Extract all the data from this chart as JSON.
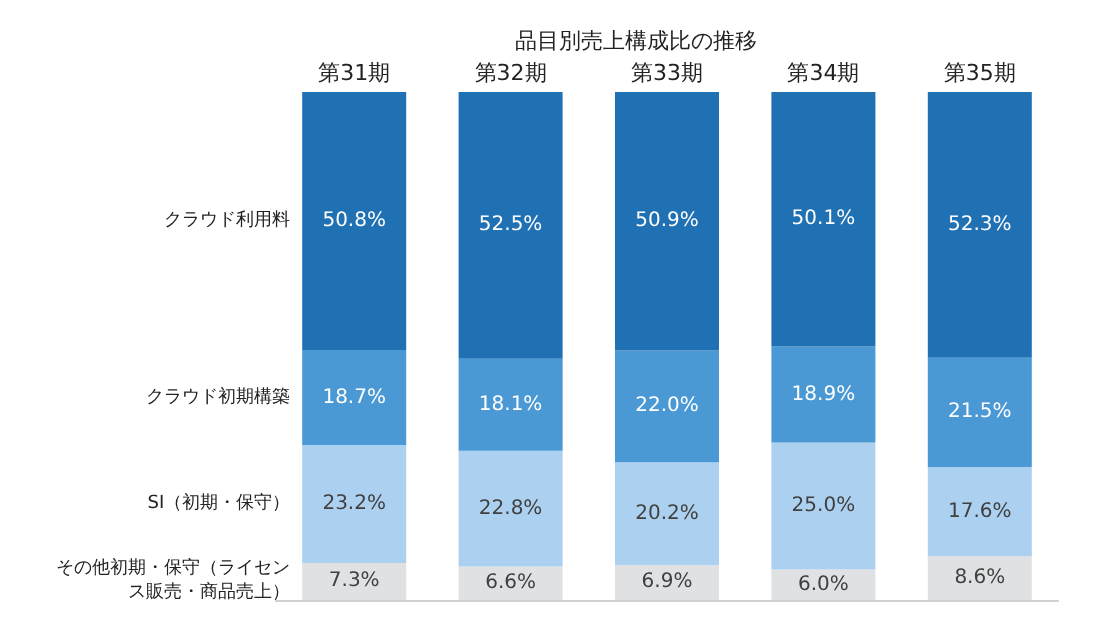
{
  "chart_data": {
    "type": "bar",
    "title": "品目別売上構成比の推移",
    "stacked": true,
    "categories": [
      "第31期",
      "第32期",
      "第33期",
      "第34期",
      "第35期"
    ],
    "series": [
      {
        "name": "その他初期・保守（ライセンス販売・商品売上）",
        "color": "#dfe1e3",
        "values": [
          7.3,
          6.6,
          6.9,
          6.0,
          8.6
        ],
        "value_labels": [
          "7.3%",
          "6.6%",
          "6.9%",
          "6.0%",
          "8.6%"
        ]
      },
      {
        "name": "SI（初期・保守）",
        "color": "#acd0ef",
        "values": [
          23.2,
          22.8,
          20.2,
          25.0,
          17.6
        ],
        "value_labels": [
          "23.2%",
          "22.8%",
          "20.2%",
          "25.0%",
          "17.6%"
        ]
      },
      {
        "name": "クラウド初期構築",
        "color": "#4a98d4",
        "values": [
          18.7,
          18.1,
          22.0,
          18.9,
          21.5
        ],
        "value_labels": [
          "18.7%",
          "18.1%",
          "22.0%",
          "18.9%",
          "21.5%"
        ]
      },
      {
        "name": "クラウド利用料",
        "color": "#2070b4",
        "values": [
          50.8,
          52.5,
          50.9,
          50.1,
          52.3
        ],
        "value_labels": [
          "50.8%",
          "52.5%",
          "50.9%",
          "50.1%",
          "52.3%"
        ]
      }
    ],
    "legend": false
  }
}
